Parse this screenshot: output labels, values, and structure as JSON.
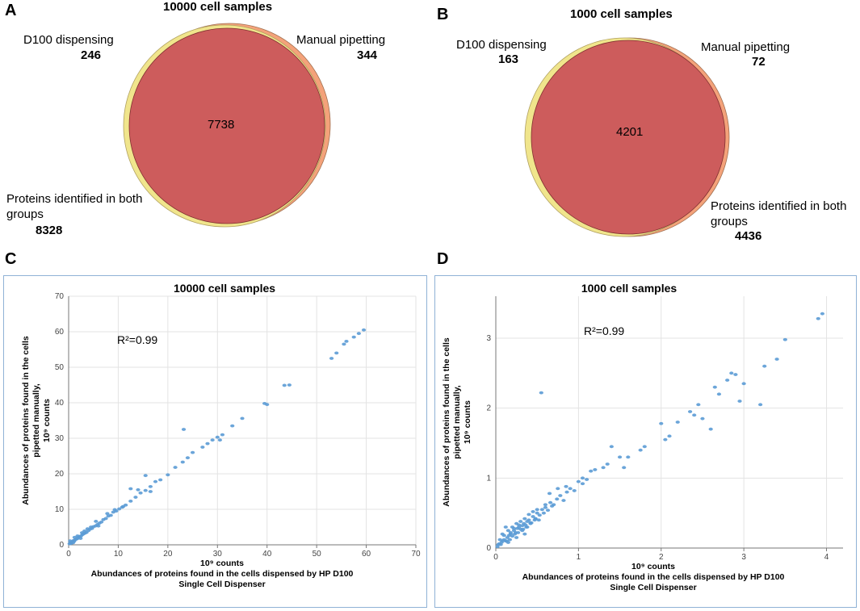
{
  "panels": {
    "a": "A",
    "b": "B",
    "c": "C",
    "d": "D"
  },
  "venn_a": {
    "title": "10000 cell samples",
    "left_label": "D100 dispensing",
    "left_value": "246",
    "right_label": "Manual pipetting",
    "right_value": "344",
    "center_value": "7738",
    "both_label_1": "Proteins identified in both",
    "both_label_2": "groups",
    "both_value": "8328",
    "colors": {
      "left": "#f0e58c",
      "right": "#f4a27a",
      "overlap": "#cd5c5c"
    }
  },
  "venn_b": {
    "title": "1000 cell samples",
    "left_label": "D100 dispensing",
    "left_value": "163",
    "right_label": "Manual pipetting",
    "right_value": "72",
    "center_value": "4201",
    "both_label_1": "Proteins identified in both",
    "both_label_2": "groups",
    "both_value": "4436",
    "colors": {
      "left": "#f0e58c",
      "right": "#f4a27a",
      "overlap": "#cd5c5c"
    }
  },
  "chart_data": [
    {
      "type": "scatter",
      "title": "10000 cell samples",
      "annotation": "R²=0.99",
      "ylabel_1": "Abundances of proteins found in the cells",
      "ylabel_2": "pipetted manually,",
      "ylabel_3": "10⁹ counts",
      "xlabel_1": "10⁹ counts",
      "xlabel_2": "Abundances of proteins found in the cells dispensed by HP D100",
      "xlabel_3": "Single Cell Dispenser",
      "xlim": [
        0,
        70
      ],
      "ylim": [
        0,
        70
      ],
      "xticks": [
        0,
        10,
        20,
        30,
        40,
        50,
        60,
        70
      ],
      "yticks": [
        0,
        10,
        20,
        30,
        40,
        50,
        60,
        70
      ],
      "point_color": "#5b9bd5",
      "x": [
        0.2,
        0.4,
        0.5,
        0.6,
        0.8,
        1.0,
        1.1,
        1.3,
        1.5,
        1.7,
        2.0,
        2.2,
        2.5,
        2.8,
        3.0,
        3.3,
        3.6,
        4.0,
        4.3,
        4.7,
        5.0,
        5.4,
        5.8,
        6.2,
        6.6,
        7.0,
        7.5,
        8.0,
        8.5,
        9.0,
        9.6,
        10.2,
        10.8,
        11.5,
        12.5,
        13.5,
        14.5,
        15.5,
        16.5,
        17.5,
        18.5,
        20.0,
        21.5,
        23.0,
        24.0,
        25.0,
        27.0,
        28.0,
        29.0,
        30.0,
        30.5,
        31.0,
        33.0,
        35.0,
        39.5,
        40.0,
        43.5,
        44.5,
        53.0,
        54.0,
        55.5,
        56.0,
        57.5,
        58.5,
        59.5,
        1.2,
        2.4,
        3.8,
        6.0,
        11.0,
        12.5,
        15.5,
        23.2,
        1.8,
        3.2,
        5.5,
        7.8,
        9.3,
        14.0,
        16.5,
        0.3,
        0.9,
        2.7,
        4.5
      ],
      "y": [
        0.3,
        0.5,
        0.4,
        0.8,
        0.9,
        1.2,
        1.0,
        1.4,
        1.6,
        1.7,
        2.1,
        2.3,
        2.5,
        2.9,
        3.1,
        3.3,
        3.5,
        4.0,
        4.4,
        4.6,
        5.1,
        5.3,
        5.7,
        6.1,
        6.4,
        7.1,
        7.4,
        8.1,
        8.3,
        9.2,
        9.5,
        10.1,
        10.6,
        11.2,
        12.3,
        13.4,
        14.6,
        15.3,
        16.4,
        17.8,
        18.3,
        19.7,
        21.8,
        23.3,
        24.5,
        26.0,
        27.5,
        28.5,
        29.5,
        30.3,
        29.5,
        31.0,
        33.5,
        35.6,
        39.8,
        39.5,
        44.9,
        45.0,
        52.5,
        54.0,
        56.5,
        57.3,
        58.5,
        59.5,
        60.5,
        2.1,
        1.8,
        4.5,
        5.3,
        10.8,
        15.8,
        19.5,
        32.5,
        2.5,
        3.9,
        6.6,
        8.8,
        9.9,
        15.5,
        15.0,
        1.1,
        0.6,
        3.4,
        5.0
      ]
    },
    {
      "type": "scatter",
      "title": "1000 cell samples",
      "annotation": "R²=0.99",
      "ylabel_1": "Abundances of proteins found in the cells",
      "ylabel_2": "pipetted manually,",
      "ylabel_3": "10⁹ counts",
      "xlabel_1": "10⁹ counts",
      "xlabel_2": "Abundances of proteins found in the cells dispensed by HP D100",
      "xlabel_3": "Single Cell Dispenser",
      "xlim": [
        0,
        4.2
      ],
      "ylim": [
        0,
        3.6
      ],
      "xticks": [
        0,
        1,
        2,
        3,
        4
      ],
      "yticks": [
        0,
        1,
        2,
        3
      ],
      "point_color": "#5b9bd5",
      "x": [
        0.02,
        0.04,
        0.06,
        0.08,
        0.1,
        0.12,
        0.14,
        0.16,
        0.18,
        0.2,
        0.22,
        0.24,
        0.26,
        0.28,
        0.3,
        0.32,
        0.34,
        0.36,
        0.38,
        0.4,
        0.42,
        0.45,
        0.48,
        0.5,
        0.53,
        0.56,
        0.6,
        0.63,
        0.66,
        0.7,
        0.74,
        0.78,
        0.82,
        0.86,
        0.9,
        0.95,
        1.0,
        1.05,
        1.1,
        1.15,
        1.2,
        1.3,
        1.35,
        1.4,
        1.5,
        1.55,
        1.6,
        1.75,
        1.8,
        2.0,
        2.05,
        2.1,
        2.2,
        2.35,
        2.4,
        2.45,
        2.5,
        2.6,
        2.65,
        2.7,
        2.8,
        2.85,
        2.9,
        2.95,
        3.0,
        3.2,
        3.25,
        3.4,
        3.5,
        3.9,
        3.95,
        0.55,
        0.05,
        0.1,
        0.15,
        0.2,
        0.25,
        0.3,
        0.35,
        0.4,
        0.45,
        0.5,
        0.6,
        0.65,
        0.75,
        0.85,
        1.05,
        0.15,
        0.25,
        0.35,
        0.12,
        0.22,
        0.32,
        0.42,
        0.52,
        0.08,
        0.18,
        0.28,
        0.38,
        0.48,
        0.58,
        0.68,
        0.03,
        0.07,
        0.13,
        0.17,
        0.23,
        0.27,
        0.33,
        0.37,
        0.43,
        0.47
      ],
      "y": [
        0.02,
        0.06,
        0.05,
        0.1,
        0.12,
        0.1,
        0.15,
        0.18,
        0.2,
        0.17,
        0.25,
        0.22,
        0.28,
        0.3,
        0.27,
        0.32,
        0.35,
        0.33,
        0.38,
        0.4,
        0.36,
        0.45,
        0.42,
        0.5,
        0.47,
        0.55,
        0.58,
        0.54,
        0.65,
        0.62,
        0.7,
        0.75,
        0.68,
        0.8,
        0.85,
        0.82,
        0.95,
        1.0,
        0.98,
        1.1,
        1.12,
        1.15,
        1.2,
        1.45,
        1.3,
        1.15,
        1.3,
        1.4,
        1.45,
        1.78,
        1.55,
        1.6,
        1.8,
        1.95,
        1.9,
        2.05,
        1.85,
        1.7,
        2.3,
        2.2,
        2.4,
        2.5,
        2.48,
        2.1,
        2.35,
        2.05,
        2.6,
        2.7,
        2.98,
        3.28,
        3.35,
        2.22,
        0.12,
        0.18,
        0.25,
        0.3,
        0.35,
        0.38,
        0.42,
        0.48,
        0.52,
        0.55,
        0.62,
        0.78,
        0.85,
        0.88,
        0.92,
        0.08,
        0.15,
        0.2,
        0.3,
        0.28,
        0.25,
        0.35,
        0.4,
        0.2,
        0.22,
        0.33,
        0.3,
        0.42,
        0.5,
        0.6,
        0.05,
        0.08,
        0.1,
        0.12,
        0.2,
        0.22,
        0.27,
        0.3,
        0.36,
        0.4
      ]
    }
  ]
}
